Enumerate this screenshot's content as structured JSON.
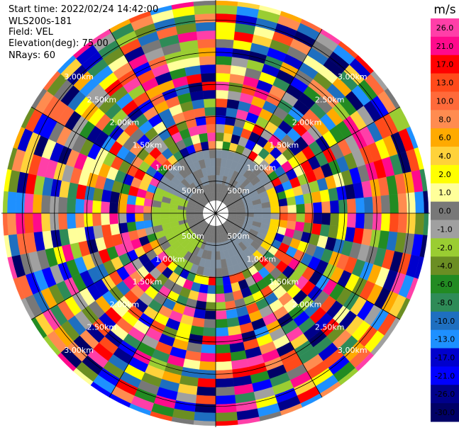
{
  "info": {
    "start_time": "Start time: 2022/02/24 14:42:00",
    "instrument": "WLS200s-181",
    "field": "Field: VEL",
    "elevation": "Elevation(deg): 75.00",
    "nrays": "NRays: 60"
  },
  "colorbar": {
    "unit": "m/s",
    "ticks": [
      "26.0",
      "21.0",
      "17.0",
      "13.0",
      "10.0",
      "8.0",
      "6.0",
      "4.0",
      "2.0",
      "1.0",
      "0.0",
      "-1.0",
      "-2.0",
      "-4.0",
      "-6.0",
      "-8.0",
      "-10.0",
      "-13.0",
      "-17.0",
      "-21.0",
      "-26.0",
      "-30.0"
    ],
    "colors": [
      "#ff3fa8",
      "#ff0a8c",
      "#ff0000",
      "#ff4a1a",
      "#ff6a3a",
      "#ff8c50",
      "#ffaa00",
      "#ffd23a",
      "#ffff00",
      "#ffff9a",
      "#787878",
      "#a0a0a0",
      "#9acd32",
      "#6b8e23",
      "#228b22",
      "#2e8b57",
      "#1e6fc0",
      "#1e90ff",
      "#0000cd",
      "#0000ff",
      "#00008b",
      "#000066"
    ]
  },
  "chart_data": {
    "type": "heatmap",
    "projection": "polar (PPI)",
    "nrays": 60,
    "range_rings_km": [
      0.5,
      1.0,
      1.5,
      2.0,
      2.5,
      3.0
    ],
    "ring_labels": [
      "500m",
      "1.00km",
      "1.50km",
      "2.00km",
      "2.50km",
      "3.00km"
    ],
    "max_range_km": 3.3,
    "value_range": [
      -30,
      30
    ],
    "unit": "m/s"
  }
}
